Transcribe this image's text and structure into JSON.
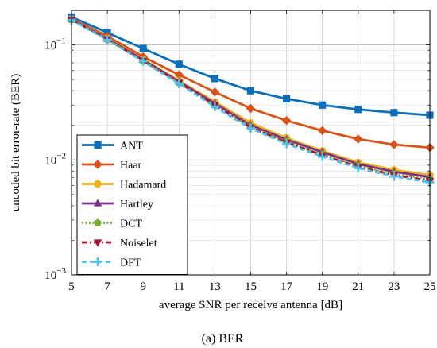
{
  "chart_data": {
    "type": "line",
    "xlabel": "average SNR per receive antenna [dB]",
    "ylabel": "uncoded bit error-rate (BER)",
    "caption": "(a)  BER",
    "yscale": "log",
    "xlim": [
      5,
      25
    ],
    "ylim": [
      0.001,
      0.2
    ],
    "xticks": [
      "5",
      "7",
      "9",
      "11",
      "13",
      "15",
      "17",
      "19",
      "21",
      "23",
      "25"
    ],
    "yticks": [
      {
        "value": 0.001,
        "base": "10",
        "exp": "−3"
      },
      {
        "value": 0.01,
        "base": "10",
        "exp": "−2"
      },
      {
        "value": 0.1,
        "base": "10",
        "exp": "−1"
      }
    ],
    "grid": true,
    "legend_position": "bottom-left",
    "x": [
      5,
      7,
      9,
      11,
      13,
      15,
      17,
      19,
      21,
      23,
      25
    ],
    "series": [
      {
        "name": "ANT",
        "color": "#0b6eb8",
        "dash": "solid",
        "marker": "square",
        "values": [
          0.175,
          0.128,
          0.093,
          0.068,
          0.051,
          0.04,
          0.034,
          0.03,
          0.0275,
          0.0258,
          0.0245
        ]
      },
      {
        "name": "Haar",
        "color": "#d95319",
        "dash": "solid",
        "marker": "diamond",
        "values": [
          0.17,
          0.119,
          0.079,
          0.055,
          0.039,
          0.028,
          0.022,
          0.018,
          0.0152,
          0.0136,
          0.0128
        ]
      },
      {
        "name": "Hadamard",
        "color": "#edb120",
        "dash": "solid",
        "marker": "circle",
        "values": [
          0.168,
          0.114,
          0.075,
          0.049,
          0.032,
          0.021,
          0.0155,
          0.012,
          0.0095,
          0.0082,
          0.0074
        ]
      },
      {
        "name": "Hartley",
        "color": "#7e2f8e",
        "dash": "solid",
        "marker": "triangle",
        "values": [
          0.167,
          0.113,
          0.074,
          0.048,
          0.031,
          0.02,
          0.015,
          0.0117,
          0.0092,
          0.0079,
          0.0071
        ]
      },
      {
        "name": "DCT",
        "color": "#77ac30",
        "dash": "dotted",
        "marker": "pentagon",
        "values": [
          0.166,
          0.112,
          0.073,
          0.047,
          0.03,
          0.0195,
          0.0145,
          0.0112,
          0.0089,
          0.0076,
          0.0068
        ]
      },
      {
        "name": "Noiselet",
        "color": "#a2142f",
        "dash": "dashdot",
        "marker": "triangle-down",
        "values": [
          0.166,
          0.112,
          0.073,
          0.047,
          0.03,
          0.0192,
          0.0142,
          0.011,
          0.0087,
          0.0074,
          0.0066
        ]
      },
      {
        "name": "DFT",
        "color": "#4dbeee",
        "dash": "dashed",
        "marker": "plus",
        "values": [
          0.165,
          0.111,
          0.072,
          0.046,
          0.029,
          0.0188,
          0.0138,
          0.0107,
          0.0085,
          0.0072,
          0.0064
        ]
      }
    ]
  }
}
